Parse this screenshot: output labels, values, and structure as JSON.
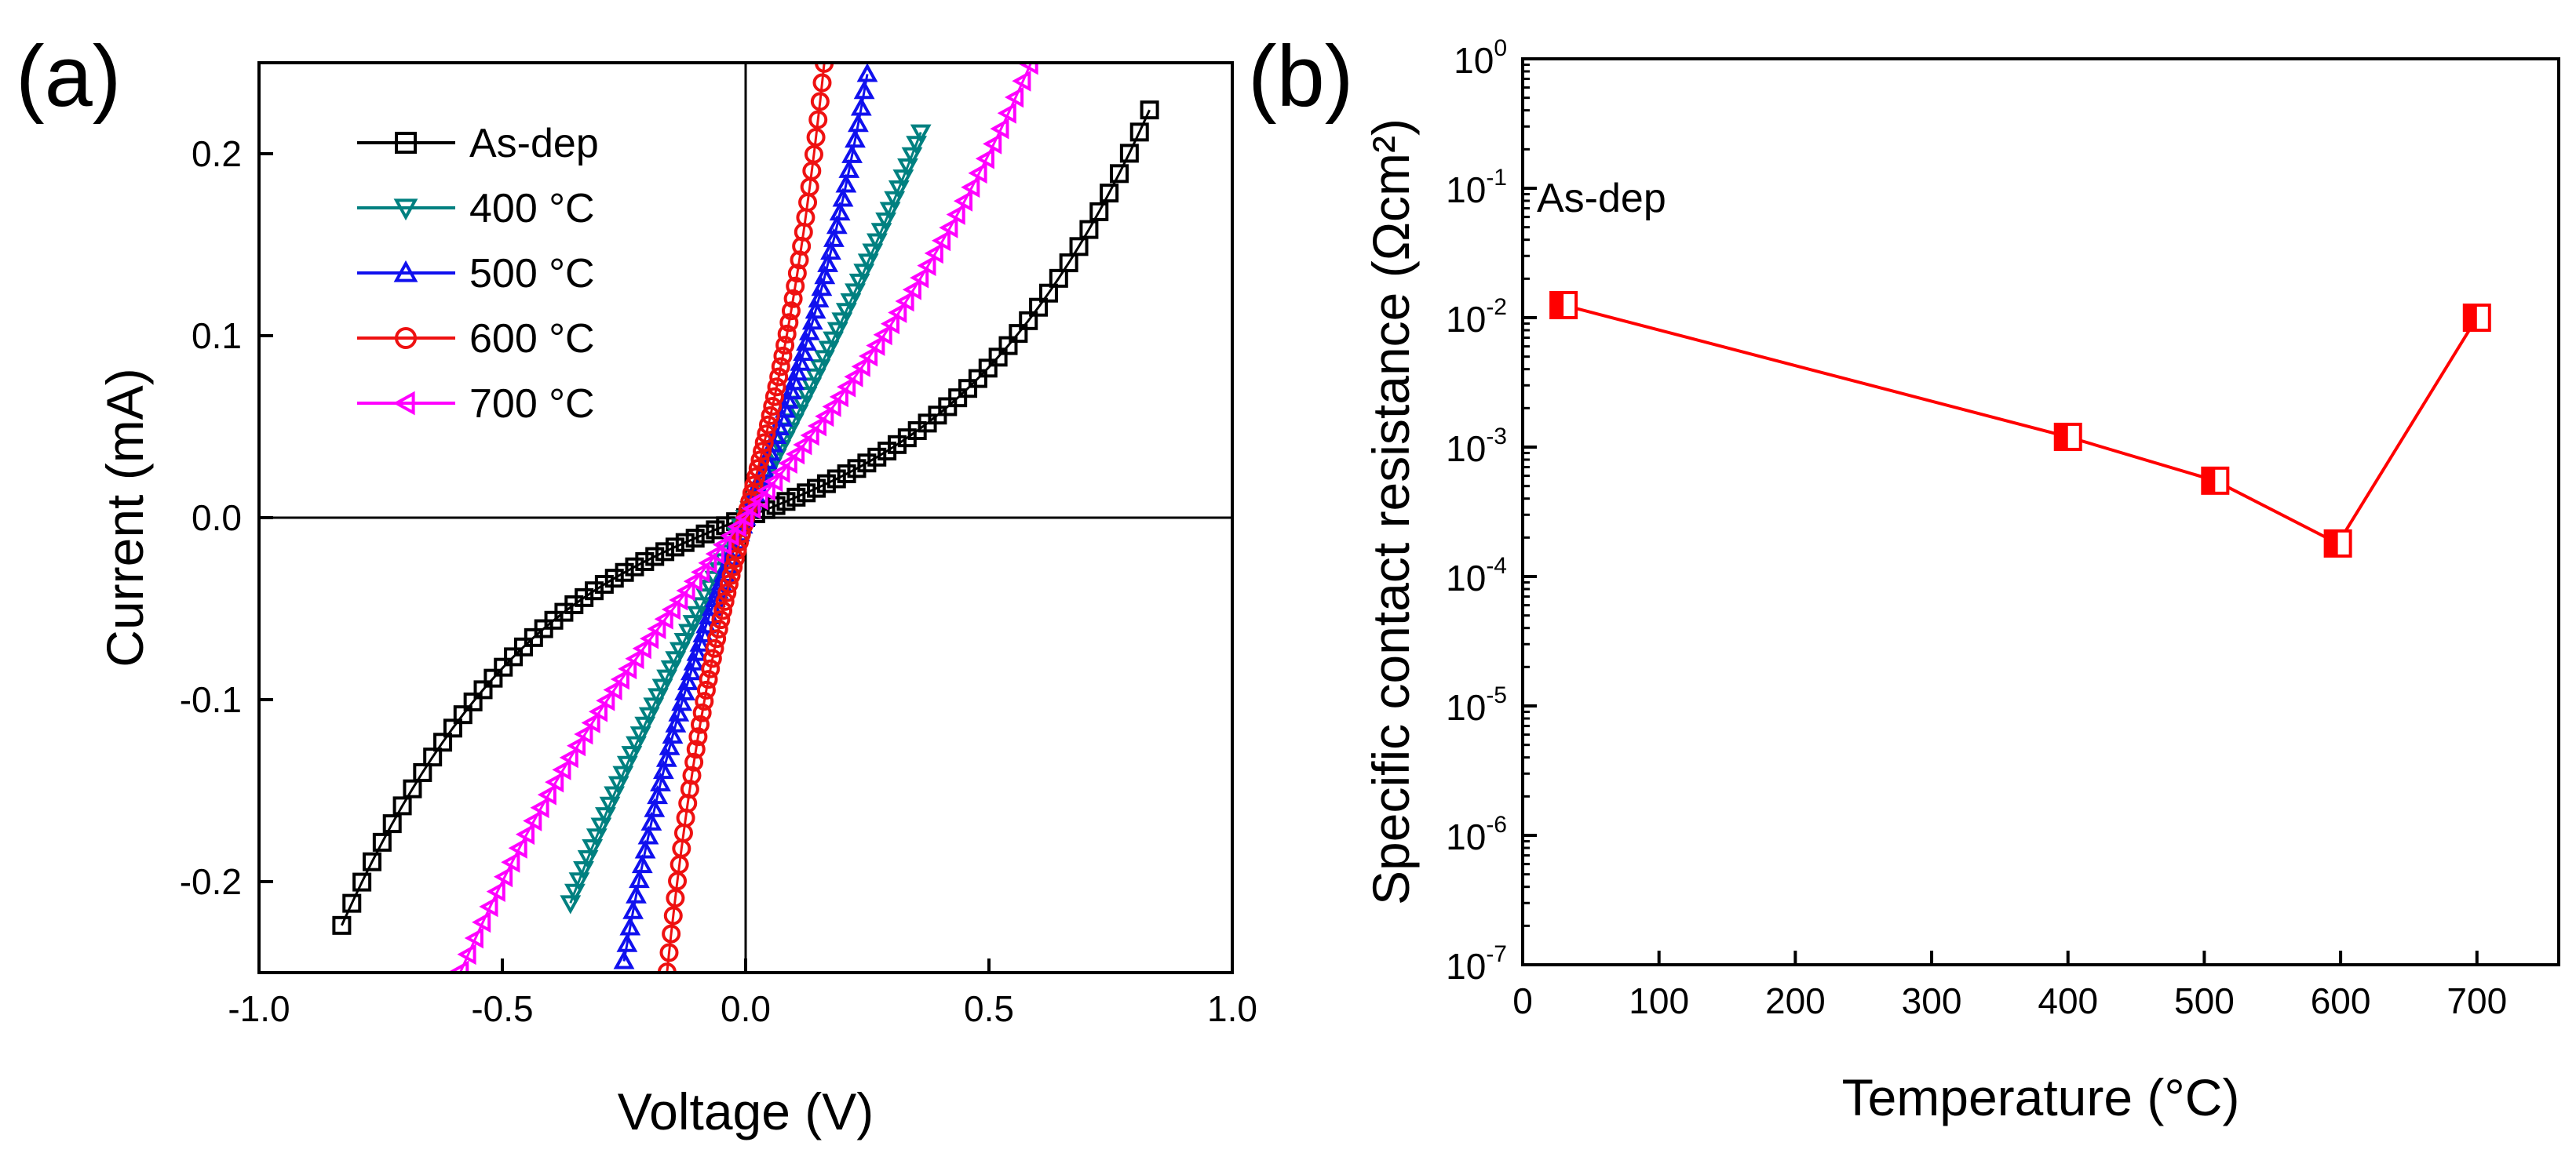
{
  "chart_data": [
    {
      "type": "line",
      "panel_label": "(a)",
      "xlabel": "Voltage (V)",
      "ylabel": "Current (mA)",
      "xlim": [
        -1.0,
        1.0
      ],
      "ylim": [
        -0.25,
        0.25
      ],
      "xticks": [
        -1.0,
        -0.5,
        0.0,
        0.5,
        1.0
      ],
      "xtick_labels": [
        "-1.0",
        "-0.5",
        "0.0",
        "0.5",
        "1.0"
      ],
      "yticks": [
        -0.2,
        -0.1,
        0.0,
        0.1,
        0.2
      ],
      "ytick_labels": [
        "-0.2",
        "-0.1",
        "0.0",
        "0.1",
        "0.2"
      ],
      "zero_lines": true,
      "legend_position": "top-left",
      "series": [
        {
          "name": "As-dep",
          "color": "#000000",
          "marker": "square",
          "vmax": 0.83,
          "a": 0.106,
          "b": 0.238
        },
        {
          "name": "400 °C",
          "color": "#008080",
          "marker": "triangle-down",
          "vmax": 0.36,
          "a": 0.53,
          "b": 0.45
        },
        {
          "name": "500 °C",
          "color": "#1010ee",
          "marker": "triangle-up",
          "vmax": 0.25,
          "a": 0.7,
          "b": 4.4
        },
        {
          "name": "600 °C",
          "color": "#ee1111",
          "marker": "circle",
          "vmax": 0.17,
          "a": 1.05,
          "b": 19.0
        },
        {
          "name": "700 °C",
          "color": "#ff00ff",
          "marker": "triangle-left",
          "vmax": 0.6,
          "a": 0.33,
          "b": 0.28
        }
      ]
    },
    {
      "type": "scatter",
      "panel_label": "(b)",
      "xlabel": "Temperature (°C)",
      "ylabel": "Specific contact resistance (Ωcm²)",
      "xlim": [
        0,
        760
      ],
      "ylim_log10": [
        -7,
        0
      ],
      "xticks": [
        0,
        100,
        200,
        300,
        400,
        500,
        600,
        700
      ],
      "xtick_labels": [
        "0",
        "100",
        "200",
        "300",
        "400",
        "500",
        "600",
        "700"
      ],
      "yticks_log10": [
        0,
        -1,
        -2,
        -3,
        -4,
        -5,
        -6,
        -7
      ],
      "ytick_exponents": [
        "0",
        "-1",
        "-2",
        "-3",
        "-4",
        "-5",
        "-6",
        "-7"
      ],
      "ytick_base": "10",
      "annotation": "As-dep",
      "series": [
        {
          "name": "Specific contact resistance",
          "color": "#ff0000",
          "marker": "half-filled-square",
          "x": [
            30,
            400,
            508,
            598,
            700
          ],
          "y": [
            0.0125,
            0.0012,
            0.00055,
            0.00018,
            0.01
          ]
        }
      ]
    }
  ]
}
